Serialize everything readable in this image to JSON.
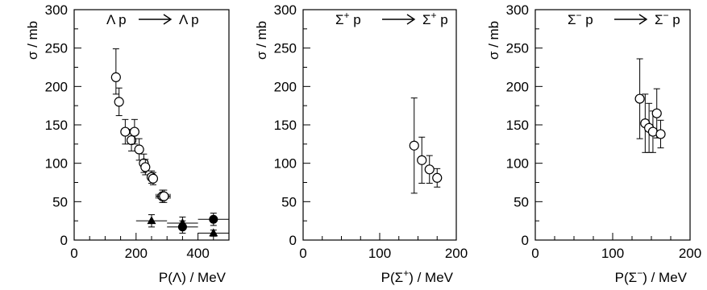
{
  "chart_data": [
    {
      "type": "scatter",
      "title": "Λ p ⟶ Λ p",
      "title_parts": {
        "left": "Λ p",
        "right": "Λ p",
        "sup": ""
      },
      "xlabel": "P(Λ) / MeV",
      "ylabel": "σ / mb",
      "xlim": [
        0,
        500
      ],
      "ylim": [
        0,
        300
      ],
      "xticks": [
        0,
        200,
        400
      ],
      "yticks": [
        0,
        50,
        100,
        150,
        200,
        250,
        300
      ],
      "grid": false,
      "series": [
        {
          "marker": "open-circle",
          "points": [
            {
              "x": 135,
              "y": 212,
              "yerr": [
                22,
                37
              ],
              "xerr": 10
            },
            {
              "x": 145,
              "y": 180,
              "yerr": [
                18,
                18
              ],
              "xerr": 10
            },
            {
              "x": 165,
              "y": 141,
              "yerr": [
                16,
                16
              ],
              "xerr": 10
            },
            {
              "x": 185,
              "y": 130,
              "yerr": [
                14,
                14
              ],
              "xerr": 10
            },
            {
              "x": 195,
              "y": 141,
              "yerr": [
                16,
                16
              ],
              "xerr": 10
            },
            {
              "x": 210,
              "y": 118,
              "yerr": [
                14,
                14
              ],
              "xerr": 10
            },
            {
              "x": 225,
              "y": 100,
              "yerr": [
                12,
                12
              ],
              "xerr": 10
            },
            {
              "x": 230,
              "y": 95,
              "yerr": [
                10,
                10
              ],
              "xerr": 10
            },
            {
              "x": 250,
              "y": 82,
              "yerr": [
                8,
                8
              ],
              "xerr": 10
            },
            {
              "x": 255,
              "y": 80,
              "yerr": [
                8,
                8
              ],
              "xerr": 10
            },
            {
              "x": 285,
              "y": 57,
              "yerr": [
                8,
                8
              ],
              "xerr": 20
            },
            {
              "x": 290,
              "y": 57,
              "yerr": [
                8,
                8
              ],
              "xerr": 20
            }
          ]
        },
        {
          "marker": "filled-triangle",
          "points": [
            {
              "x": 250,
              "y": 25,
              "yerr": [
                8,
                8
              ],
              "xerr": 50
            },
            {
              "x": 350,
              "y": 22,
              "yerr": [
                8,
                8
              ],
              "xerr": 50
            },
            {
              "x": 450,
              "y": 9,
              "yerr": [
                4,
                4
              ],
              "xerr": 50
            }
          ]
        },
        {
          "marker": "filled-circle",
          "points": [
            {
              "x": 350,
              "y": 17,
              "yerr": [
                8,
                8
              ],
              "xerr": 50
            },
            {
              "x": 450,
              "y": 27,
              "yerr": [
                8,
                8
              ],
              "xerr": 50
            }
          ]
        }
      ]
    },
    {
      "type": "scatter",
      "title": "Σ⁺ p ⟶ Σ⁺ p",
      "title_parts": {
        "left": "Σ",
        "right": "Σ",
        "sup": "+"
      },
      "xlabel": "P(Σ⁺) / MeV",
      "xlabel_parts": {
        "base": "P(Σ",
        "sup": "+",
        "tail": ") / MeV"
      },
      "ylabel": "σ / mb",
      "xlim": [
        0,
        200
      ],
      "ylim": [
        0,
        300
      ],
      "xticks": [
        0,
        100,
        200
      ],
      "yticks": [
        0,
        50,
        100,
        150,
        200,
        250,
        300
      ],
      "grid": false,
      "series": [
        {
          "marker": "open-circle",
          "points": [
            {
              "x": 145,
              "y": 123,
              "yerr": [
                62,
                62
              ]
            },
            {
              "x": 155,
              "y": 104,
              "yerr": [
                30,
                30
              ]
            },
            {
              "x": 165,
              "y": 92,
              "yerr": [
                18,
                18
              ]
            },
            {
              "x": 175,
              "y": 81,
              "yerr": [
                12,
                12
              ]
            }
          ]
        }
      ]
    },
    {
      "type": "scatter",
      "title": "Σ⁻ p ⟶ Σ⁻ p",
      "title_parts": {
        "left": "Σ",
        "right": "Σ",
        "sup": "−"
      },
      "xlabel": "P(Σ⁻) / MeV",
      "xlabel_parts": {
        "base": "P(Σ",
        "sup": "−",
        "tail": ") / MeV"
      },
      "ylabel": "σ / mb",
      "xlim": [
        0,
        200
      ],
      "ylim": [
        0,
        300
      ],
      "xticks": [
        0,
        100,
        200
      ],
      "yticks": [
        0,
        50,
        100,
        150,
        200,
        250,
        300
      ],
      "grid": false,
      "series": [
        {
          "marker": "open-circle",
          "points": [
            {
              "x": 135,
              "y": 184,
              "yerr": [
                52,
                52
              ]
            },
            {
              "x": 142,
              "y": 152,
              "yerr": [
                38,
                38
              ]
            },
            {
              "x": 147,
              "y": 146,
              "yerr": [
                32,
                32
              ]
            },
            {
              "x": 152,
              "y": 141,
              "yerr": [
                27,
                27
              ]
            },
            {
              "x": 157,
              "y": 165,
              "yerr": [
                32,
                32
              ]
            },
            {
              "x": 162,
              "y": 138,
              "yerr": [
                18,
                18
              ]
            }
          ]
        }
      ]
    }
  ]
}
